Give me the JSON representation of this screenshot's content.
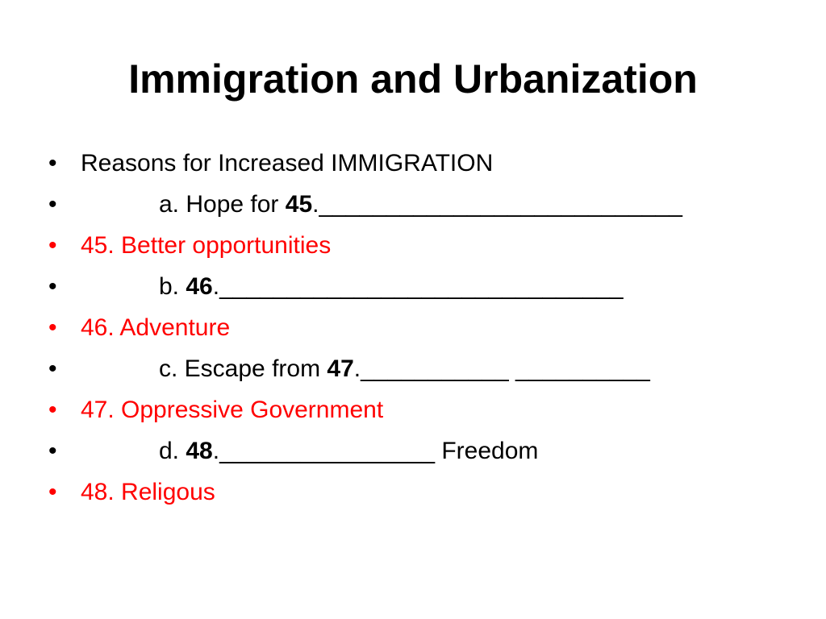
{
  "slide": {
    "title": "Immigration and Urbanization",
    "bullets": [
      {
        "color": "#000000",
        "parts": [
          {
            "text": "Reasons for Increased IMMIGRATION",
            "bold": false
          }
        ]
      },
      {
        "color": "#000000",
        "parts": [
          {
            "text": "\ta. Hope for ",
            "bold": false
          },
          {
            "text": "45",
            "bold": true
          },
          {
            "text": ".___________________________",
            "bold": false
          }
        ]
      },
      {
        "color": "#ff0000",
        "parts": [
          {
            "text": "45. Better opportunities",
            "bold": false
          }
        ]
      },
      {
        "color": "#000000",
        "parts": [
          {
            "text": "\tb. ",
            "bold": false
          },
          {
            "text": "46",
            "bold": true
          },
          {
            "text": ".______________________________",
            "bold": false
          }
        ]
      },
      {
        "color": "#ff0000",
        "parts": [
          {
            "text": "46. Adventure",
            "bold": false
          }
        ]
      },
      {
        "color": "#000000",
        "parts": [
          {
            "text": "\tc. Escape from ",
            "bold": false
          },
          {
            "text": "47",
            "bold": true
          },
          {
            "text": ".___________ __________",
            "bold": false
          }
        ]
      },
      {
        "color": "#ff0000",
        "parts": [
          {
            "text": "47. Oppressive Government",
            "bold": false
          }
        ]
      },
      {
        "color": "#000000",
        "parts": [
          {
            "text": "\td. ",
            "bold": false
          },
          {
            "text": "48",
            "bold": true
          },
          {
            "text": ".________________ Freedom",
            "bold": false
          }
        ]
      },
      {
        "color": "#ff0000",
        "parts": [
          {
            "text": "48. Religous",
            "bold": false
          }
        ]
      }
    ]
  }
}
